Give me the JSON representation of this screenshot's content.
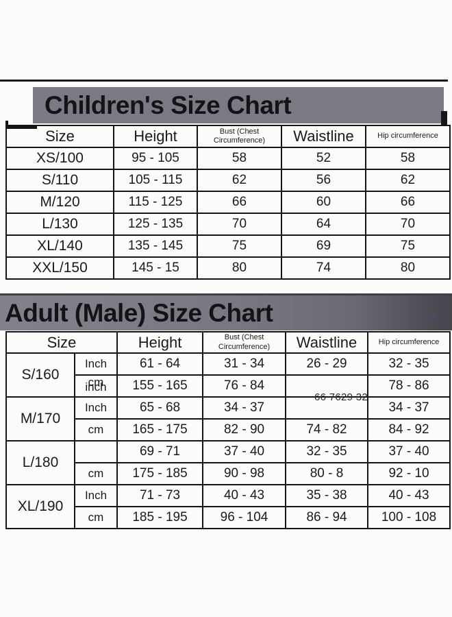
{
  "page": {
    "background": "#fcfcfc",
    "band_gray": "#7a7a83",
    "border_black": "#141414"
  },
  "children_chart": {
    "title": "Children's Size Chart",
    "columns": [
      {
        "label": "Size"
      },
      {
        "label": "Height"
      },
      {
        "label": "Bust (Chest",
        "label2": "Circumference)"
      },
      {
        "label": "Waistline"
      },
      {
        "label": "Hip circumference"
      }
    ],
    "rows": [
      {
        "size": "XS/100",
        "height": "95 - 105",
        "bust": "58",
        "waist": "52",
        "hip": "58"
      },
      {
        "size": "S/110",
        "height": "105 - 115",
        "bust": "62",
        "waist": "56",
        "hip": "62"
      },
      {
        "size": "M/120",
        "height": "115 - 125",
        "bust": "66",
        "waist": "60",
        "hip": "66"
      },
      {
        "size": "L/130",
        "height": "125 - 135",
        "bust": "70",
        "waist": "64",
        "hip": "70"
      },
      {
        "size": "XL/140",
        "height": "135 - 145",
        "bust": "75",
        "waist": "69",
        "hip": "75"
      },
      {
        "size": "XXL/150",
        "height": "145 - 15",
        "bust": "80",
        "waist": "74",
        "hip": "80"
      }
    ]
  },
  "adult_chart": {
    "title": "Adult (Male) Size Chart",
    "artifact_glyph": "s",
    "garbled_waist_text": "66 7629 32",
    "columns": [
      {
        "label": "Size"
      },
      {
        "label": "Height"
      },
      {
        "label": "Bust (Chest",
        "label2": "Circumference)"
      },
      {
        "label": "Waistline"
      },
      {
        "label": "Hip circumference"
      }
    ],
    "rows": [
      {
        "size": "S/160",
        "sub": [
          {
            "unit": "Inch",
            "height": "61 - 64",
            "bust": "31 - 34",
            "waist": "26 - 29",
            "hip": "32 - 35"
          },
          {
            "unit": "cm",
            "unit_ghost": "inch",
            "height": "155 - 165",
            "bust": "76 - 84",
            "waist": "",
            "hip": "78 - 86"
          }
        ]
      },
      {
        "size": "M/170",
        "sub": [
          {
            "unit": "Inch",
            "height": "65 - 68",
            "bust": "34 - 37",
            "waist": "",
            "hip": "34 - 37"
          },
          {
            "unit": "cm",
            "height": "165 - 175",
            "bust": "82 - 90",
            "waist": "74 - 82",
            "hip": "84 - 92"
          }
        ]
      },
      {
        "size": "L/180",
        "sub": [
          {
            "unit": "",
            "height": "69 - 71",
            "bust": "37 - 40",
            "waist": "32 - 35",
            "hip": "37 - 40"
          },
          {
            "unit": "cm",
            "height": "175 - 185",
            "bust": "90 - 98",
            "waist": "80 - 8",
            "hip": "92 - 10"
          }
        ]
      },
      {
        "size": "XL/190",
        "sub": [
          {
            "unit": "Inch",
            "height": "71 - 73",
            "bust": "40 - 43",
            "waist": "35 - 38",
            "hip": "40 - 43"
          },
          {
            "unit": "cm",
            "height": "185 - 195",
            "bust": "96 - 104",
            "waist": "86 - 94",
            "hip": "100 - 108"
          }
        ]
      }
    ]
  }
}
